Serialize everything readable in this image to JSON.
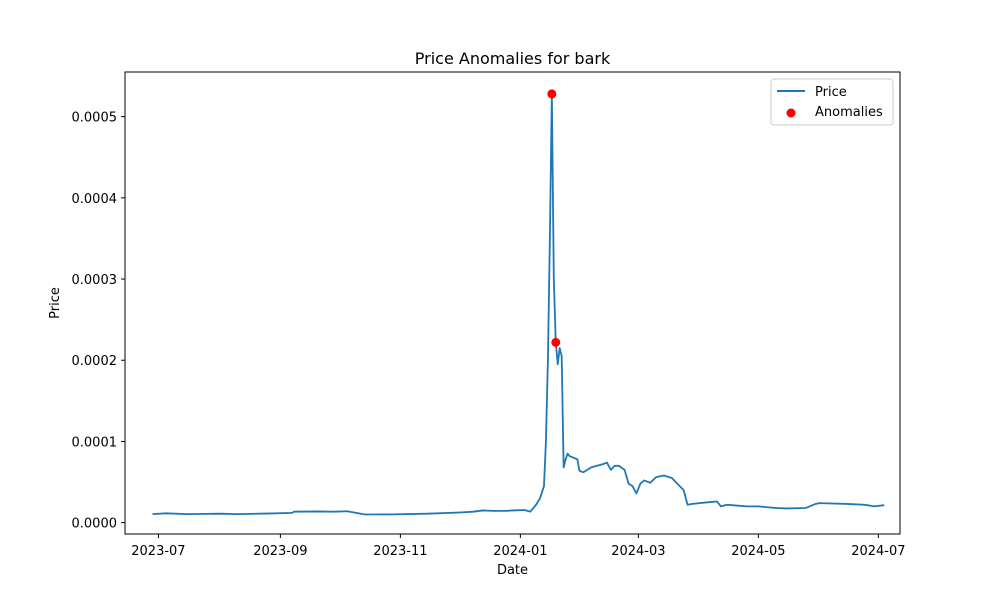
{
  "chart_data": {
    "type": "line",
    "title": "Price Anomalies for bark",
    "xlabel": "Date",
    "ylabel": "Price",
    "x_range": [
      "2023-06-14",
      "2024-07-12"
    ],
    "ylim": [
      -1.4e-05,
      0.000555
    ],
    "x_ticks": [
      "2023-07-01",
      "2023-09-01",
      "2023-11-01",
      "2024-01-01",
      "2024-03-01",
      "2024-05-01",
      "2024-07-01"
    ],
    "x_tick_labels": [
      "2023-07",
      "2023-09",
      "2023-11",
      "2024-01",
      "2024-03",
      "2024-05",
      "2024-07"
    ],
    "y_ticks": [
      0.0,
      0.0001,
      0.0002,
      0.0003,
      0.0004,
      0.0005
    ],
    "y_tick_labels": [
      "0.0000",
      "0.0001",
      "0.0002",
      "0.0003",
      "0.0004",
      "0.0005"
    ],
    "grid": false,
    "legend_position": "top-right",
    "colors": {
      "price": "#1f77b4",
      "anomalies": "#ff0000"
    },
    "series": [
      {
        "name": "Price",
        "kind": "line",
        "points": [
          [
            "2023-06-28",
            1.05e-05
          ],
          [
            "2023-07-05",
            1.15e-05
          ],
          [
            "2023-07-15",
            1.05e-05
          ],
          [
            "2023-07-25",
            1.08e-05
          ],
          [
            "2023-08-01",
            1.1e-05
          ],
          [
            "2023-08-10",
            1.05e-05
          ],
          [
            "2023-08-25",
            1.12e-05
          ],
          [
            "2023-09-07",
            1.2e-05
          ],
          [
            "2023-09-08",
            1.35e-05
          ],
          [
            "2023-09-20",
            1.38e-05
          ],
          [
            "2023-09-28",
            1.35e-05
          ],
          [
            "2023-10-05",
            1.4e-05
          ],
          [
            "2023-10-14",
            1e-05
          ],
          [
            "2023-10-28",
            1.02e-05
          ],
          [
            "2023-11-15",
            1.1e-05
          ],
          [
            "2023-12-01",
            1.25e-05
          ],
          [
            "2023-12-08",
            1.35e-05
          ],
          [
            "2023-12-13",
            1.5e-05
          ],
          [
            "2023-12-18",
            1.45e-05
          ],
          [
            "2023-12-25",
            1.45e-05
          ],
          [
            "2023-12-28",
            1.5e-05
          ],
          [
            "2024-01-03",
            1.55e-05
          ],
          [
            "2024-01-06",
            1.35e-05
          ],
          [
            "2024-01-09",
            2.2e-05
          ],
          [
            "2024-01-11",
            3e-05
          ],
          [
            "2024-01-13",
            4.5e-05
          ],
          [
            "2024-01-14",
            0.0001
          ],
          [
            "2024-01-15",
            0.0002
          ],
          [
            "2024-01-16",
            0.00035
          ],
          [
            "2024-01-17",
            0.000528
          ],
          [
            "2024-01-18",
            0.0003
          ],
          [
            "2024-01-19",
            0.000222
          ],
          [
            "2024-01-20",
            0.000195
          ],
          [
            "2024-01-21",
            0.000215
          ],
          [
            "2024-01-22",
            0.000205
          ],
          [
            "2024-01-23",
            6.8e-05
          ],
          [
            "2024-01-24",
            7.8e-05
          ],
          [
            "2024-01-25",
            8.5e-05
          ],
          [
            "2024-01-26",
            8.2e-05
          ],
          [
            "2024-01-28",
            8e-05
          ],
          [
            "2024-01-30",
            7.8e-05
          ],
          [
            "2024-01-31",
            6.4e-05
          ],
          [
            "2024-02-02",
            6.2e-05
          ],
          [
            "2024-02-04",
            6.5e-05
          ],
          [
            "2024-02-06",
            6.8e-05
          ],
          [
            "2024-02-09",
            7e-05
          ],
          [
            "2024-02-12",
            7.2e-05
          ],
          [
            "2024-02-14",
            7.4e-05
          ],
          [
            "2024-02-16",
            6.5e-05
          ],
          [
            "2024-02-18",
            7e-05
          ],
          [
            "2024-02-20",
            7e-05
          ],
          [
            "2024-02-23",
            6.5e-05
          ],
          [
            "2024-02-25",
            4.8e-05
          ],
          [
            "2024-02-27",
            4.5e-05
          ],
          [
            "2024-02-29",
            3.6e-05
          ],
          [
            "2024-03-02",
            4.8e-05
          ],
          [
            "2024-03-04",
            5.2e-05
          ],
          [
            "2024-03-07",
            4.9e-05
          ],
          [
            "2024-03-10",
            5.6e-05
          ],
          [
            "2024-03-14",
            5.8e-05
          ],
          [
            "2024-03-18",
            5.5e-05
          ],
          [
            "2024-03-22",
            4.5e-05
          ],
          [
            "2024-03-24",
            4e-05
          ],
          [
            "2024-03-26",
            2.2e-05
          ],
          [
            "2024-03-28",
            2.3e-05
          ],
          [
            "2024-04-05",
            2.5e-05
          ],
          [
            "2024-04-10",
            2.6e-05
          ],
          [
            "2024-04-12",
            2e-05
          ],
          [
            "2024-04-15",
            2.2e-05
          ],
          [
            "2024-04-20",
            2.1e-05
          ],
          [
            "2024-04-25",
            2e-05
          ],
          [
            "2024-05-01",
            2e-05
          ],
          [
            "2024-05-10",
            1.8e-05
          ],
          [
            "2024-05-15",
            1.75e-05
          ],
          [
            "2024-05-25",
            1.8e-05
          ],
          [
            "2024-05-30",
            2.3e-05
          ],
          [
            "2024-06-01",
            2.4e-05
          ],
          [
            "2024-06-15",
            2.3e-05
          ],
          [
            "2024-06-24",
            2.2e-05
          ],
          [
            "2024-06-29",
            2e-05
          ],
          [
            "2024-07-04",
            2.15e-05
          ]
        ]
      },
      {
        "name": "Anomalies",
        "kind": "scatter",
        "points": [
          [
            "2024-01-17",
            0.000528
          ],
          [
            "2024-01-19",
            0.000222
          ]
        ]
      }
    ]
  }
}
